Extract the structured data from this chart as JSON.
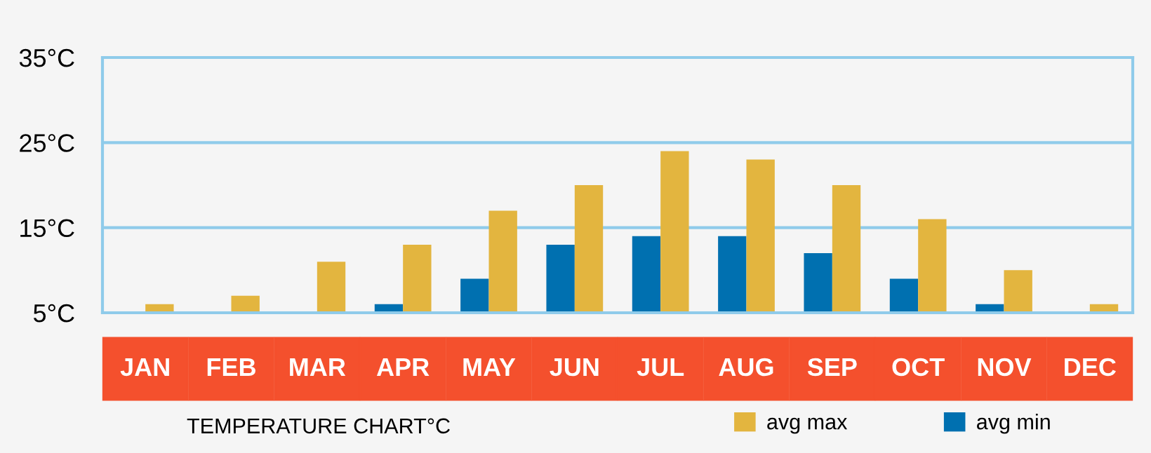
{
  "chart_data": {
    "type": "bar",
    "title": "TEMPERATURE CHART°C",
    "categories": [
      "JAN",
      "FEB",
      "MAR",
      "APR",
      "MAY",
      "JUN",
      "JUL",
      "AUG",
      "SEP",
      "OCT",
      "NOV",
      "DEC"
    ],
    "series": [
      {
        "name": "avg min",
        "color": "#0070b0",
        "values": [
          null,
          null,
          null,
          6,
          9,
          13,
          14,
          14,
          12,
          9,
          6,
          null
        ]
      },
      {
        "name": "avg max",
        "color": "#e3b53f",
        "values": [
          6,
          7,
          11,
          13,
          17,
          20,
          24,
          23,
          20,
          16,
          10,
          6
        ]
      }
    ],
    "ylim": [
      5,
      35
    ],
    "yticks": [
      {
        "value": 5,
        "label": "5°C"
      },
      {
        "value": 15,
        "label": "15°C"
      },
      {
        "value": 25,
        "label": "25°C"
      },
      {
        "value": 35,
        "label": "35°C"
      }
    ],
    "grid": "y",
    "legend": "bottom"
  }
}
